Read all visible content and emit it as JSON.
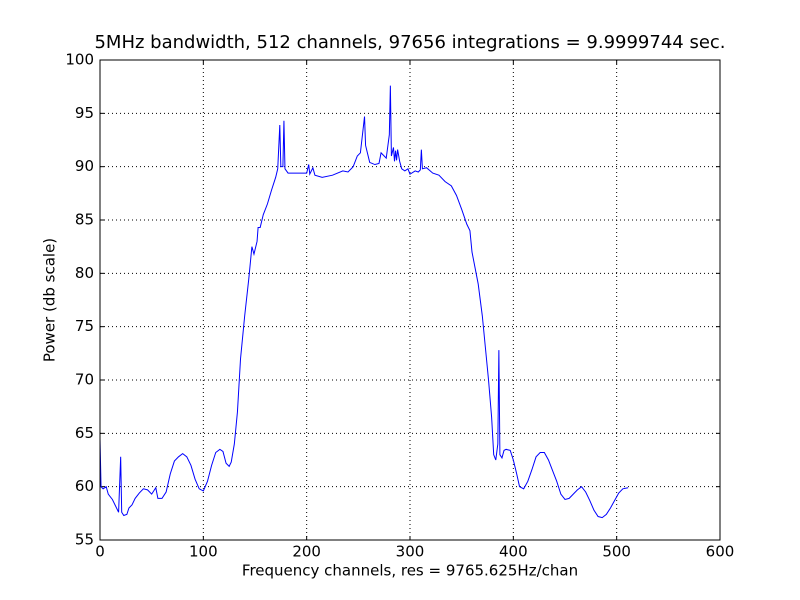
{
  "chart_data": {
    "type": "line",
    "title": "5MHz bandwidth, 512 channels, 97656 integrations = 9.9999744 sec.",
    "xlabel": "Frequency channels, res = 9765.625Hz/chan",
    "ylabel": "Power (db scale)",
    "x": [
      0,
      1,
      3,
      6,
      8,
      12,
      15,
      18,
      20,
      21,
      23,
      26,
      28,
      31,
      34,
      38,
      42,
      46,
      50,
      54,
      56,
      60,
      64,
      68,
      72,
      76,
      80,
      84,
      88,
      92,
      96,
      100,
      104,
      108,
      112,
      116,
      119,
      122,
      125,
      127,
      130,
      133,
      136,
      140,
      144,
      147,
      149,
      152,
      153,
      155,
      158,
      162,
      166,
      170,
      172,
      174,
      175,
      177,
      178,
      179,
      182,
      190,
      200,
      202,
      203,
      206,
      208,
      215,
      225,
      235,
      240,
      245,
      249,
      252,
      254,
      256,
      257,
      259,
      261,
      266,
      270,
      272,
      275,
      277,
      280,
      281,
      282,
      284,
      285,
      286,
      287,
      288,
      290,
      292,
      295,
      298,
      300,
      305,
      308,
      310,
      311,
      312,
      316,
      322,
      328,
      334,
      340,
      345,
      350,
      355,
      358,
      360,
      363,
      366,
      370,
      373,
      376,
      379,
      381,
      383,
      385,
      386,
      387,
      389,
      391,
      393,
      397,
      400,
      403,
      406,
      410,
      414,
      418,
      422,
      426,
      430,
      434,
      438,
      442,
      446,
      450,
      454,
      458,
      462,
      466,
      470,
      474,
      478,
      482,
      486,
      490,
      494,
      498,
      502,
      506,
      511
    ],
    "series": [
      {
        "color": "#0000ff",
        "values": [
          64.5,
          60,
          59.8,
          60,
          59.3,
          58.8,
          58.2,
          57.6,
          62.8,
          57.6,
          57.3,
          57.4,
          58,
          58.3,
          58.9,
          59.4,
          59.8,
          59.7,
          59.3,
          59.9,
          58.9,
          58.9,
          59.5,
          61.2,
          62.4,
          62.8,
          63.1,
          62.8,
          62,
          60.7,
          59.8,
          59.6,
          60.5,
          62,
          63.2,
          63.5,
          63.3,
          62.2,
          61.9,
          62.3,
          64,
          67,
          72,
          76,
          79.5,
          82.5,
          81.8,
          83,
          84.3,
          84.3,
          85.5,
          86.5,
          87.8,
          89,
          89.8,
          93.9,
          90,
          90,
          94.3,
          89.8,
          89.4,
          89.4,
          89.4,
          90.2,
          89.3,
          89.9,
          89.2,
          89,
          89.2,
          89.6,
          89.5,
          90,
          91,
          91.3,
          93,
          94.7,
          92,
          91.2,
          90.4,
          90.2,
          90.3,
          91.3,
          91,
          90.8,
          93,
          97.6,
          91,
          91.8,
          90.5,
          91.5,
          90.6,
          91.6,
          90.5,
          89.8,
          89.6,
          89.8,
          89.3,
          89.6,
          89.5,
          89.7,
          91.6,
          89.8,
          89.9,
          89.4,
          89.2,
          88.6,
          88.2,
          87.3,
          86,
          84.6,
          84,
          82,
          80.5,
          79,
          76,
          73,
          70,
          66.5,
          63,
          62.5,
          64,
          72.8,
          63,
          62.7,
          63.4,
          63.5,
          63.4,
          62.5,
          61.3,
          60,
          59.8,
          60.5,
          61.6,
          62.8,
          63.2,
          63.2,
          62.5,
          61.5,
          60.5,
          59.3,
          58.8,
          58.9,
          59.3,
          59.7,
          60,
          59.5,
          58.7,
          57.8,
          57.2,
          57.1,
          57.4,
          58,
          58.7,
          59.4,
          59.8,
          59.9
        ]
      }
    ],
    "xlim": [
      0,
      600
    ],
    "xticks": [
      0,
      100,
      200,
      300,
      400,
      500,
      600
    ],
    "ylim": [
      55,
      100
    ],
    "yticks": [
      55,
      60,
      65,
      70,
      75,
      80,
      85,
      90,
      95,
      100
    ],
    "grid": true
  }
}
